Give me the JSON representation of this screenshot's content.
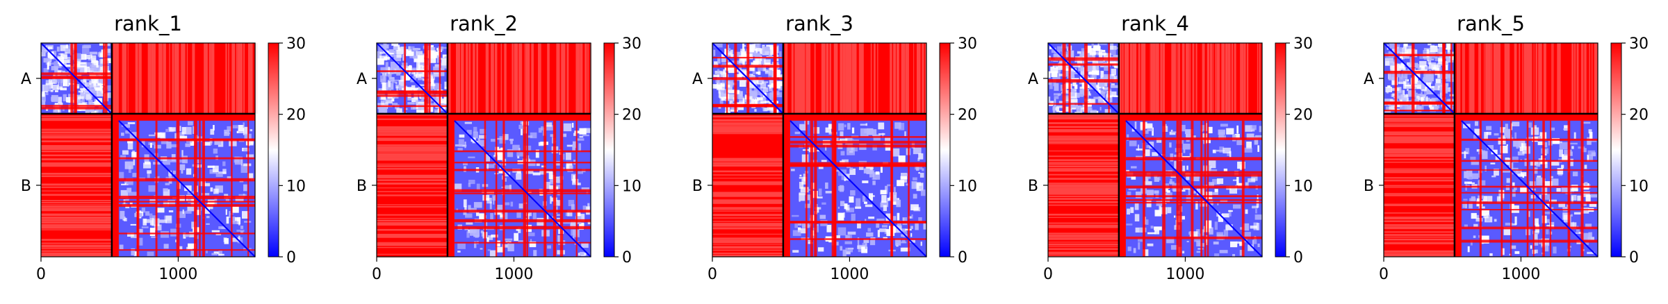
{
  "chart_data": [
    {
      "type": "heatmap",
      "title": "rank_1",
      "x_ticks": [
        0,
        1000
      ],
      "y_ticks": [
        "A",
        "B"
      ],
      "matrix_size": 1560,
      "chain_boundary": 516,
      "colorbar": {
        "range": [
          0,
          30
        ],
        "ticks": [
          0,
          10,
          20,
          30
        ],
        "colors": [
          "#0000ff",
          "#ffffff",
          "#ff0000"
        ]
      }
    },
    {
      "type": "heatmap",
      "title": "rank_2",
      "x_ticks": [
        0,
        1000
      ],
      "y_ticks": [
        "A",
        "B"
      ],
      "matrix_size": 1560,
      "chain_boundary": 516,
      "colorbar": {
        "range": [
          0,
          30
        ],
        "ticks": [
          0,
          10,
          20,
          30
        ],
        "colors": [
          "#0000ff",
          "#ffffff",
          "#ff0000"
        ]
      }
    },
    {
      "type": "heatmap",
      "title": "rank_3",
      "x_ticks": [
        0,
        1000
      ],
      "y_ticks": [
        "A",
        "B"
      ],
      "matrix_size": 1560,
      "chain_boundary": 516,
      "colorbar": {
        "range": [
          0,
          30
        ],
        "ticks": [
          0,
          10,
          20,
          30
        ],
        "colors": [
          "#0000ff",
          "#ffffff",
          "#ff0000"
        ]
      }
    },
    {
      "type": "heatmap",
      "title": "rank_4",
      "x_ticks": [
        0,
        1000
      ],
      "y_ticks": [
        "A",
        "B"
      ],
      "matrix_size": 1560,
      "chain_boundary": 516,
      "colorbar": {
        "range": [
          0,
          30
        ],
        "ticks": [
          0,
          10,
          20,
          30
        ],
        "colors": [
          "#0000ff",
          "#ffffff",
          "#ff0000"
        ]
      }
    },
    {
      "type": "heatmap",
      "title": "rank_5",
      "x_ticks": [
        0,
        1000
      ],
      "y_ticks": [
        "A",
        "B"
      ],
      "matrix_size": 1560,
      "chain_boundary": 516,
      "colorbar": {
        "range": [
          0,
          30
        ],
        "ticks": [
          0,
          10,
          20,
          30
        ],
        "colors": [
          "#0000ff",
          "#ffffff",
          "#ff0000"
        ]
      }
    }
  ]
}
